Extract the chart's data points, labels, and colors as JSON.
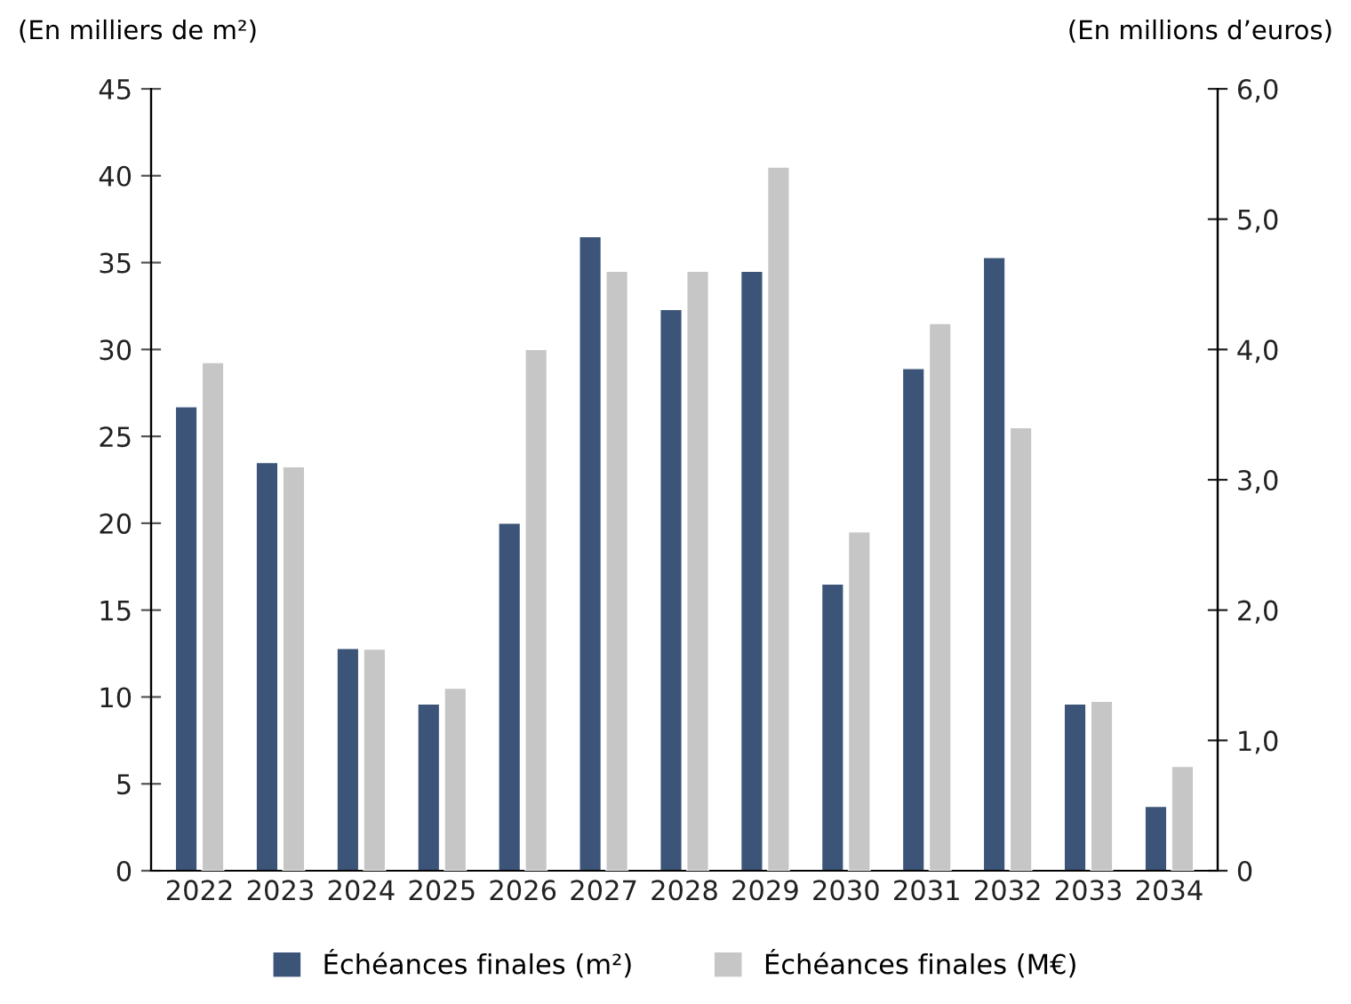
{
  "chart_data": {
    "type": "bar",
    "ylabel": "(En milliers de m²)",
    "y2label": "(En millions d’euros)",
    "categories": [
      "2022",
      "2023",
      "2024",
      "2025",
      "2026",
      "2027",
      "2028",
      "2029",
      "2030",
      "2031",
      "2032",
      "2033",
      "2034"
    ],
    "series": [
      {
        "name": "Échéances finales (m²)",
        "color": "#3b5478",
        "values": [
          26.7,
          23.5,
          12.8,
          9.6,
          20.0,
          36.5,
          32.3,
          34.5,
          16.5,
          28.9,
          35.3,
          9.6,
          3.7
        ]
      },
      {
        "name": "Échéances finales (M€)",
        "color": "#c6c6c6",
        "axis": "y2",
        "values": [
          3.9,
          3.1,
          1.7,
          1.4,
          4.0,
          4.6,
          4.6,
          5.4,
          2.6,
          4.2,
          3.4,
          1.3,
          0.8
        ]
      }
    ],
    "ylim": [
      0,
      45
    ],
    "yticks": [
      0,
      5,
      10,
      15,
      20,
      25,
      30,
      35,
      40,
      45
    ],
    "y2lim": [
      0,
      6
    ],
    "y2ticks": [
      0,
      {
        "value": 1,
        "label": "1,0"
      },
      {
        "value": 2,
        "label": "2,0"
      },
      {
        "value": 3,
        "label": "3,0"
      },
      {
        "value": 4,
        "label": "4,0"
      },
      {
        "value": 5,
        "label": "5,0"
      },
      {
        "value": 6,
        "label": "6,0"
      }
    ],
    "grid": false,
    "legend": "bottom"
  }
}
